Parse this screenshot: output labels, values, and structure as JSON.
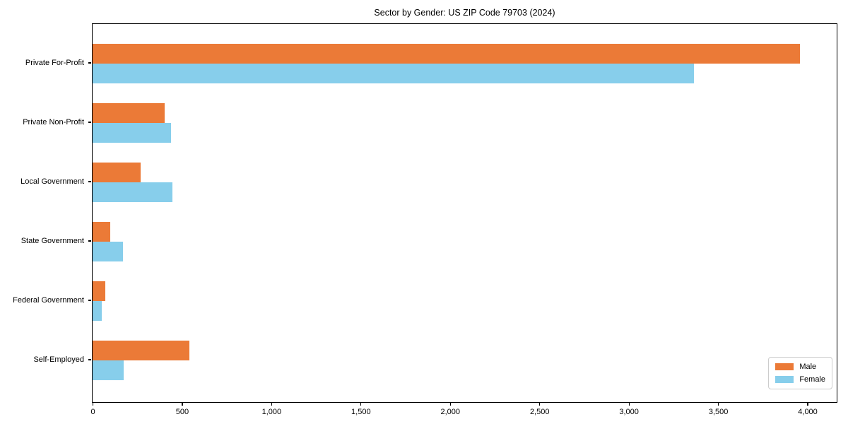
{
  "title": "Sector by Gender: US ZIP Code 79703 (2024)",
  "chart_data": {
    "type": "bar",
    "orientation": "horizontal",
    "title": "Sector by Gender: US ZIP Code 79703 (2024)",
    "categories": [
      "Private For-Profit",
      "Private Non-Profit",
      "Local Government",
      "State Government",
      "Federal Government",
      "Self-Employed"
    ],
    "series": [
      {
        "name": "Male",
        "color": "#eb7a37",
        "values": [
          3960,
          405,
          270,
          100,
          70,
          540
        ]
      },
      {
        "name": "Female",
        "color": "#87ceeb",
        "values": [
          3365,
          440,
          445,
          170,
          50,
          175
        ]
      }
    ],
    "xlabel": "",
    "ylabel": "",
    "xlim": [
      0,
      4160
    ],
    "xticks": [
      0,
      500,
      1000,
      1500,
      2000,
      2500,
      3000,
      3500,
      4000
    ],
    "xtick_labels": [
      "0",
      "500",
      "1,000",
      "1,500",
      "2,000",
      "2,500",
      "3,000",
      "3,500",
      "4,000"
    ],
    "grid": false,
    "legend": {
      "position": "lower right",
      "entries": [
        "Male",
        "Female"
      ]
    }
  }
}
